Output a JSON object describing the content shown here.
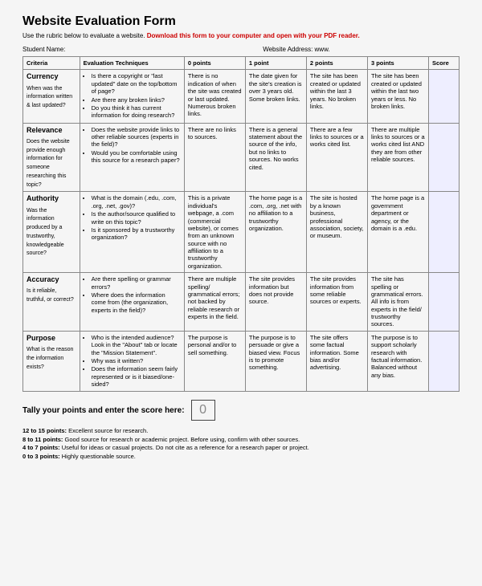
{
  "doc": {
    "title": "Website Evaluation Form",
    "instr_plain": "Use the rubric below to evaluate a website. ",
    "instr_red": "Download this form to your computer and open with your PDF reader.",
    "student_label": "Student Name:",
    "addr_label": "Website Address: www."
  },
  "headers": {
    "h0": "Criteria",
    "h1": "Evaluation Techniques",
    "h2": "0 points",
    "h3": "1 point",
    "h4": "2 points",
    "h5": "3 points",
    "h6": "Score"
  },
  "rows": [
    {
      "name": "Currency",
      "q": "When was the information written & last updated?",
      "tech": [
        "Is there a copyright or \"last updated\" date on the top/bottom of page?",
        "Are there any broken links?",
        "Do you think it has current information for doing research?"
      ],
      "p0": "There is no indication of when the site was created or last updated. Numerous broken links.",
      "p1": "The date given for the site's creation is over 3 years old. Some broken links.",
      "p2": "The site has been created or updated within the last 3 years. No broken links.",
      "p3": "The site has been created or updated within the last two years or less. No broken links."
    },
    {
      "name": "Relevance",
      "q": "Does the website provide enough information for someone researching this topic?",
      "tech": [
        "Does the website provide links to other reliable sources (experts in the field)?",
        "Would you be comfortable using this source for a research paper?"
      ],
      "p0": "There are no links to sources.",
      "p1": "There is a general statement about the source of the info, but no links to sources. No works cited.",
      "p2": "There are a few links to sources or a works cited list.",
      "p3": "There are multiple links to sources or a works cited list AND they are from other reliable sources."
    },
    {
      "name": "Authority",
      "q": "Was the information produced by a trustworthy, knowledgeable source?",
      "tech": [
        "What is the domain (.edu, .com, .org, .net, .gov)?",
        "Is the author/source qualified to write on this topic?",
        "Is it sponsored by a trustworthy organization?"
      ],
      "p0": "This is a private individual's webpage, a .com (commercial website), or comes from an unknown source with no affiliation to a trustworthy organization.",
      "p1": "The home page is a .com, .org, .net with no affiliation to a trustworthy organization.",
      "p2": "The site is hosted by a known business, professional association, society, or museum.",
      "p3": "The home page is a government department or agency, or the domain is a .edu."
    },
    {
      "name": "Accuracy",
      "q": "Is it reliable, truthful, or correct?",
      "tech": [
        "Are there spelling or grammar errors?",
        "Where does the information come from (the organization, experts in the field)?"
      ],
      "p0": "There are multiple spelling/ grammatical errors; not backed by reliable research or experts in the field.",
      "p1": "The site provides information but does not provide source.",
      "p2": "The site provides information from some reliable sources or experts.",
      "p3": "The site has spelling or grammatical errors. All info is from experts in the field/ trustworthy sources."
    },
    {
      "name": "Purpose",
      "q": "What is the reason the information exists?",
      "tech": [
        "Who is the intended audience? Look in the \"About\" tab or locate the \"Mission Statement\".",
        "Why was it written?",
        "Does the information seem fairly represented or is it biased/one-sided?"
      ],
      "p0": "The purpose is personal and/or to sell something.",
      "p1": "The purpose is to persuade or give a biased view. Focus is to promote something.",
      "p2": "The site offers some factual information. Some bias and/or advertising.",
      "p3": "The purpose is to support scholarly research with factual information. Balanced without any bias."
    }
  ],
  "tally": {
    "label": "Tally your points and enter the score here:",
    "value": "0"
  },
  "ranges": [
    {
      "b": "12 to 15 points:",
      "t": " Excellent source for research."
    },
    {
      "b": "8 to 11 points:",
      "t": " Good source for research or academic project. Before using, confirm with other sources."
    },
    {
      "b": "4 to 7 points:",
      "t": " Useful for ideas or casual projects. Do not cite as a reference for a research paper or project."
    },
    {
      "b": "0 to 3 points:",
      "t": " Highly questionable source."
    }
  ]
}
